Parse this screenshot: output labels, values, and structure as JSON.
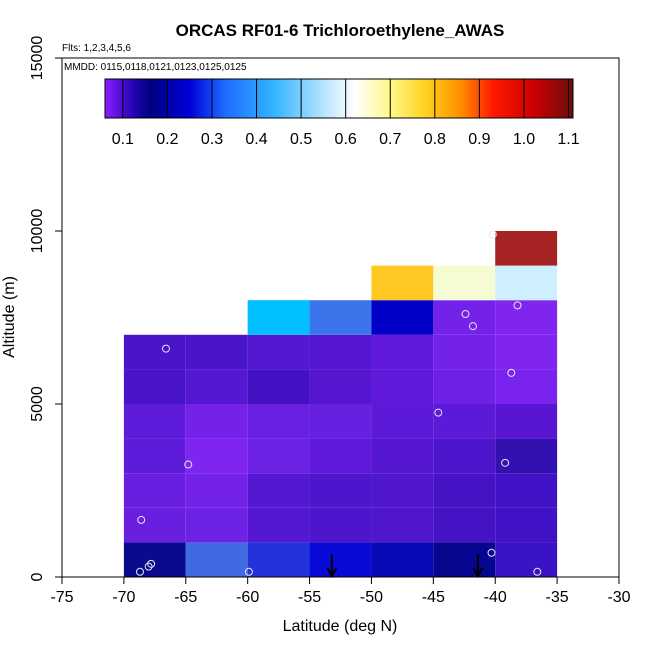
{
  "chart_data": {
    "type": "heatmap",
    "title": "ORCAS RF01-6 Trichloroethylene_AWAS",
    "annotations": {
      "flights": "Flts: 1,2,3,4,5,6",
      "dates": "MMDD: 0115,0118,0121,0123,0125,0125"
    },
    "xlabel": "Latitude (deg N)",
    "ylabel": "Altitude (m)",
    "xlim": [
      -75,
      -30
    ],
    "ylim": [
      0,
      15000
    ],
    "xticks": [
      -75,
      -70,
      -65,
      -60,
      -55,
      -50,
      -45,
      -40,
      -35,
      -30
    ],
    "yticks": [
      0,
      5000,
      10000,
      15000
    ],
    "colorbar": {
      "min": 0.06,
      "max": 1.11,
      "ticks": [
        0.1,
        0.2,
        0.3,
        0.4,
        0.5,
        0.6,
        0.7,
        0.8,
        0.9,
        1.0,
        1.1
      ],
      "tick_labels": [
        "0.1",
        "0.2",
        "0.3",
        "0.4",
        "0.5",
        "0.6",
        "0.7",
        "0.8",
        "0.9",
        "1.0",
        "1.1"
      ],
      "gradient": [
        {
          "v": 0.06,
          "color": "#8b1eff"
        },
        {
          "v": 0.12,
          "color": "#2a05b8"
        },
        {
          "v": 0.16,
          "color": "#000080"
        },
        {
          "v": 0.25,
          "color": "#0000d8"
        },
        {
          "v": 0.33,
          "color": "#1e6cff"
        },
        {
          "v": 0.44,
          "color": "#33b5ff"
        },
        {
          "v": 0.55,
          "color": "#b7e3ff"
        },
        {
          "v": 0.62,
          "color": "#ffffff"
        },
        {
          "v": 0.7,
          "color": "#fff88a"
        },
        {
          "v": 0.78,
          "color": "#ffd21e"
        },
        {
          "v": 0.86,
          "color": "#ff8c00"
        },
        {
          "v": 0.93,
          "color": "#ff1a00"
        },
        {
          "v": 1.02,
          "color": "#cc0000"
        },
        {
          "v": 1.11,
          "color": "#6e0d0d"
        }
      ]
    },
    "grid_lat_edges": [
      -70,
      -65,
      -60,
      -55,
      -50,
      -45,
      -40,
      -35
    ],
    "grid_alt_edges": [
      0,
      1000,
      2000,
      3000,
      4000,
      5000,
      6000,
      7000,
      8000,
      9000,
      10000
    ],
    "cells": [
      {
        "lat": [
          -70,
          -65
        ],
        "alt": [
          0,
          1000
        ],
        "color": "#0a0a8c"
      },
      {
        "lat": [
          -65,
          -60
        ],
        "alt": [
          0,
          1000
        ],
        "color": "#4169e1"
      },
      {
        "lat": [
          -60,
          -55
        ],
        "alt": [
          0,
          1000
        ],
        "color": "#2233dd"
      },
      {
        "lat": [
          -55,
          -50
        ],
        "alt": [
          0,
          1000
        ],
        "color": "#0a0ad8"
      },
      {
        "lat": [
          -50,
          -45
        ],
        "alt": [
          0,
          1000
        ],
        "color": "#0909b8"
      },
      {
        "lat": [
          -45,
          -40
        ],
        "alt": [
          0,
          1000
        ],
        "color": "#06068e"
      },
      {
        "lat": [
          -40,
          -35
        ],
        "alt": [
          0,
          1000
        ],
        "color": "#3a13c5"
      },
      {
        "lat": [
          -70,
          -65
        ],
        "alt": [
          1000,
          2000
        ],
        "color": "#6a1ee0"
      },
      {
        "lat": [
          -65,
          -60
        ],
        "alt": [
          1000,
          2000
        ],
        "color": "#6e22e5"
      },
      {
        "lat": [
          -60,
          -55
        ],
        "alt": [
          1000,
          2000
        ],
        "color": "#5418d2"
      },
      {
        "lat": [
          -55,
          -50
        ],
        "alt": [
          1000,
          2000
        ],
        "color": "#4e16cc"
      },
      {
        "lat": [
          -50,
          -45
        ],
        "alt": [
          1000,
          2000
        ],
        "color": "#5016cc"
      },
      {
        "lat": [
          -45,
          -40
        ],
        "alt": [
          1000,
          2000
        ],
        "color": "#4512c4"
      },
      {
        "lat": [
          -40,
          -35
        ],
        "alt": [
          1000,
          2000
        ],
        "color": "#4012c6"
      },
      {
        "lat": [
          -70,
          -65
        ],
        "alt": [
          2000,
          3000
        ],
        "color": "#6a1ee0"
      },
      {
        "lat": [
          -65,
          -60
        ],
        "alt": [
          2000,
          3000
        ],
        "color": "#7422ea"
      },
      {
        "lat": [
          -60,
          -55
        ],
        "alt": [
          2000,
          3000
        ],
        "color": "#5418d2"
      },
      {
        "lat": [
          -55,
          -50
        ],
        "alt": [
          2000,
          3000
        ],
        "color": "#4e16cc"
      },
      {
        "lat": [
          -50,
          -45
        ],
        "alt": [
          2000,
          3000
        ],
        "color": "#5016cc"
      },
      {
        "lat": [
          -45,
          -40
        ],
        "alt": [
          2000,
          3000
        ],
        "color": "#4512c4"
      },
      {
        "lat": [
          -40,
          -35
        ],
        "alt": [
          2000,
          3000
        ],
        "color": "#4012c6"
      },
      {
        "lat": [
          -70,
          -65
        ],
        "alt": [
          3000,
          4000
        ],
        "color": "#5e1bd9"
      },
      {
        "lat": [
          -65,
          -60
        ],
        "alt": [
          3000,
          4000
        ],
        "color": "#7e25f2"
      },
      {
        "lat": [
          -60,
          -55
        ],
        "alt": [
          3000,
          4000
        ],
        "color": "#6c21e4"
      },
      {
        "lat": [
          -55,
          -50
        ],
        "alt": [
          3000,
          4000
        ],
        "color": "#6018da"
      },
      {
        "lat": [
          -50,
          -45
        ],
        "alt": [
          3000,
          4000
        ],
        "color": "#5416cf"
      },
      {
        "lat": [
          -45,
          -40
        ],
        "alt": [
          3000,
          4000
        ],
        "color": "#4e16cc"
      },
      {
        "lat": [
          -40,
          -35
        ],
        "alt": [
          3000,
          4000
        ],
        "color": "#3310b0"
      },
      {
        "lat": [
          -70,
          -65
        ],
        "alt": [
          4000,
          5000
        ],
        "color": "#5e1bd9"
      },
      {
        "lat": [
          -65,
          -60
        ],
        "alt": [
          4000,
          5000
        ],
        "color": "#7422ea"
      },
      {
        "lat": [
          -60,
          -55
        ],
        "alt": [
          4000,
          5000
        ],
        "color": "#6a20e3"
      },
      {
        "lat": [
          -55,
          -50
        ],
        "alt": [
          4000,
          5000
        ],
        "color": "#6620e0"
      },
      {
        "lat": [
          -50,
          -45
        ],
        "alt": [
          4000,
          5000
        ],
        "color": "#5c1ad8"
      },
      {
        "lat": [
          -45,
          -40
        ],
        "alt": [
          4000,
          5000
        ],
        "color": "#5c1ad8"
      },
      {
        "lat": [
          -40,
          -35
        ],
        "alt": [
          4000,
          5000
        ],
        "color": "#5816d2"
      },
      {
        "lat": [
          -70,
          -65
        ],
        "alt": [
          5000,
          6000
        ],
        "color": "#4a14c8"
      },
      {
        "lat": [
          -65,
          -60
        ],
        "alt": [
          5000,
          6000
        ],
        "color": "#5418d2"
      },
      {
        "lat": [
          -60,
          -55
        ],
        "alt": [
          5000,
          6000
        ],
        "color": "#4412c2"
      },
      {
        "lat": [
          -55,
          -50
        ],
        "alt": [
          5000,
          6000
        ],
        "color": "#5416cf"
      },
      {
        "lat": [
          -50,
          -45
        ],
        "alt": [
          5000,
          6000
        ],
        "color": "#6018da"
      },
      {
        "lat": [
          -45,
          -40
        ],
        "alt": [
          5000,
          6000
        ],
        "color": "#6e20e6"
      },
      {
        "lat": [
          -40,
          -35
        ],
        "alt": [
          5000,
          6000
        ],
        "color": "#7a22ee"
      },
      {
        "lat": [
          -70,
          -65
        ],
        "alt": [
          6000,
          7000
        ],
        "color": "#4a14c8"
      },
      {
        "lat": [
          -65,
          -60
        ],
        "alt": [
          6000,
          7000
        ],
        "color": "#4a14c8"
      },
      {
        "lat": [
          -60,
          -55
        ],
        "alt": [
          6000,
          7000
        ],
        "color": "#5418d2"
      },
      {
        "lat": [
          -55,
          -50
        ],
        "alt": [
          6000,
          7000
        ],
        "color": "#5416cf"
      },
      {
        "lat": [
          -50,
          -45
        ],
        "alt": [
          6000,
          7000
        ],
        "color": "#6018da"
      },
      {
        "lat": [
          -45,
          -40
        ],
        "alt": [
          6000,
          7000
        ],
        "color": "#7422ea"
      },
      {
        "lat": [
          -40,
          -35
        ],
        "alt": [
          6000,
          7000
        ],
        "color": "#8024f0"
      },
      {
        "lat": [
          -60,
          -55
        ],
        "alt": [
          7000,
          8000
        ],
        "color": "#00bfff"
      },
      {
        "lat": [
          -55,
          -50
        ],
        "alt": [
          7000,
          8000
        ],
        "color": "#3b75ec"
      },
      {
        "lat": [
          -50,
          -45
        ],
        "alt": [
          7000,
          8000
        ],
        "color": "#0000c8"
      },
      {
        "lat": [
          -45,
          -40
        ],
        "alt": [
          7000,
          8000
        ],
        "color": "#7422ea"
      },
      {
        "lat": [
          -40,
          -35
        ],
        "alt": [
          7000,
          8000
        ],
        "color": "#8024f0"
      },
      {
        "lat": [
          -50,
          -45
        ],
        "alt": [
          8000,
          9000
        ],
        "color": "#ffc822"
      },
      {
        "lat": [
          -45,
          -40
        ],
        "alt": [
          8000,
          9000
        ],
        "color": "#f5fbd2"
      },
      {
        "lat": [
          -40,
          -35
        ],
        "alt": [
          8000,
          9000
        ],
        "color": "#cdefff"
      },
      {
        "lat": [
          -40,
          -35
        ],
        "alt": [
          9000,
          10000
        ],
        "color": "#a52323"
      }
    ],
    "scatter": [
      {
        "lat": -68.7,
        "alt": 150
      },
      {
        "lat": -68.0,
        "alt": 300
      },
      {
        "lat": -67.8,
        "alt": 380
      },
      {
        "lat": -59.9,
        "alt": 150
      },
      {
        "lat": -40.3,
        "alt": 700
      },
      {
        "lat": -36.6,
        "alt": 150
      },
      {
        "lat": -68.6,
        "alt": 1650
      },
      {
        "lat": -64.8,
        "alt": 3250
      },
      {
        "lat": -39.2,
        "alt": 3300
      },
      {
        "lat": -44.6,
        "alt": 4750
      },
      {
        "lat": -38.7,
        "alt": 5900
      },
      {
        "lat": -66.6,
        "alt": 6600
      },
      {
        "lat": -41.8,
        "alt": 7250
      },
      {
        "lat": -42.4,
        "alt": 7600
      },
      {
        "lat": -38.2,
        "alt": 7850
      },
      {
        "lat": -40.2,
        "alt": 9900
      }
    ],
    "arrows": [
      {
        "lat": -53.2,
        "alt_from": 650,
        "alt_to": 0
      },
      {
        "lat": -41.4,
        "alt_from": 650,
        "alt_to": 0
      }
    ]
  }
}
